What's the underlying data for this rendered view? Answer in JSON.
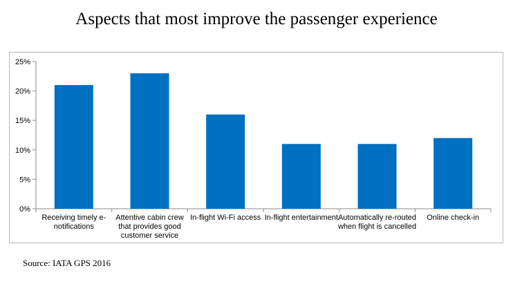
{
  "title": "Aspects that most improve the passenger experience",
  "source": "Source: IATA GPS 2016",
  "chart_data": {
    "type": "bar",
    "title": "",
    "xlabel": "",
    "ylabel": "",
    "categories": [
      [
        "Receiving timely e-",
        "notifications"
      ],
      [
        "Attentive cabin crew",
        "that provides good",
        "customer service"
      ],
      [
        "In-flight Wi-Fi access"
      ],
      [
        "In-flight entertainment"
      ],
      [
        "Automatically re-routed",
        "when flight is cancelled"
      ],
      [
        "Online check-in"
      ]
    ],
    "values": [
      21,
      23,
      16,
      11,
      11,
      12
    ],
    "ylim": [
      0,
      25
    ],
    "yticks": [
      0,
      5,
      10,
      15,
      20,
      25
    ],
    "ytick_labels": [
      "0%",
      "5%",
      "10%",
      "15%",
      "20%",
      "25%"
    ],
    "grid": false,
    "bar_color": "#0070c0",
    "axis_color": "#888888"
  }
}
